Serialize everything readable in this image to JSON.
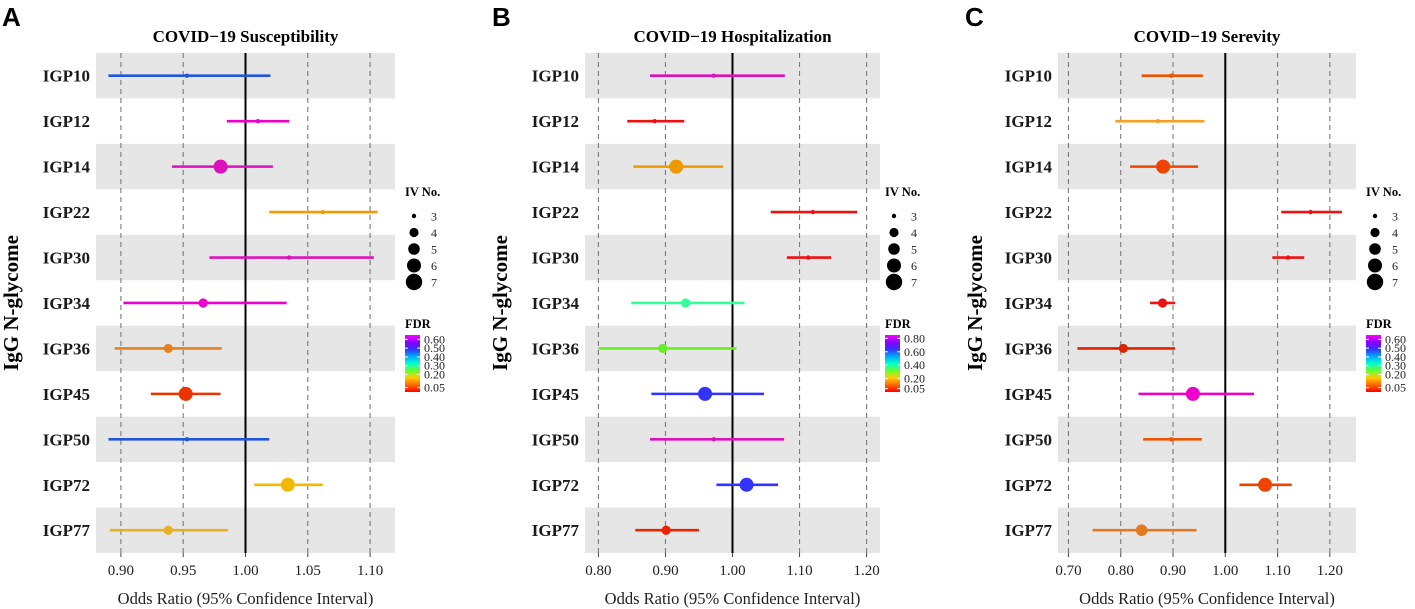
{
  "ylabel": "IgG N-glycome",
  "xlabel": "Odds Ratio (95% Confidence Interval)",
  "legend": {
    "size_title": "IV No.",
    "size_values": [
      3,
      4,
      5,
      6,
      7
    ],
    "color_title": "FDR",
    "colorscale": [
      "#ff0000",
      "#ff6600",
      "#ffcc00",
      "#66ff33",
      "#00ffcc",
      "#00aaff",
      "#3333ff",
      "#8800ff",
      "#ff00ff"
    ]
  },
  "chart_data": [
    {
      "panel": "A",
      "type": "forest",
      "title": "COVID−19 Susceptibility",
      "xlim": [
        0.88,
        1.12
      ],
      "xticks": [
        0.9,
        0.95,
        1.0,
        1.05,
        1.1
      ],
      "xtick_labels": [
        "0.90",
        "0.95",
        "1.00",
        "1.05",
        "1.10"
      ],
      "ref_line": 1.0,
      "fdr_ticks": [
        0.6,
        0.5,
        0.4,
        0.3,
        0.2,
        0.05
      ],
      "fdr_labels": [
        "0.60",
        "0.50",
        "0.40",
        "0.30",
        "0.20",
        "0.05"
      ],
      "fdr_range": [
        0.0,
        0.65
      ],
      "rows": [
        {
          "label": "IGP10",
          "or": 0.953,
          "lo": 0.89,
          "hi": 1.02,
          "iv": 3,
          "fdr": 0.45,
          "color": "#2255dd"
        },
        {
          "label": "IGP12",
          "or": 1.01,
          "lo": 0.985,
          "hi": 1.035,
          "iv": 3,
          "fdr": 0.62,
          "color": "#ee00cc"
        },
        {
          "label": "IGP14",
          "or": 0.98,
          "lo": 0.941,
          "hi": 1.022,
          "iv": 6,
          "fdr": 0.62,
          "color": "#dd11bb"
        },
        {
          "label": "IGP22",
          "or": 1.062,
          "lo": 1.019,
          "hi": 1.106,
          "iv": 3,
          "fdr": 0.12,
          "color": "#f59a00"
        },
        {
          "label": "IGP30",
          "or": 1.035,
          "lo": 0.971,
          "hi": 1.103,
          "iv": 3,
          "fdr": 0.62,
          "color": "#dd11bb"
        },
        {
          "label": "IGP34",
          "or": 0.966,
          "lo": 0.902,
          "hi": 1.033,
          "iv": 4,
          "fdr": 0.62,
          "color": "#ee00cc"
        },
        {
          "label": "IGP36",
          "or": 0.938,
          "lo": 0.895,
          "hi": 0.981,
          "iv": 4,
          "fdr": 0.1,
          "color": "#e6821e"
        },
        {
          "label": "IGP45",
          "or": 0.952,
          "lo": 0.924,
          "hi": 0.98,
          "iv": 6,
          "fdr": 0.03,
          "color": "#ee3300"
        },
        {
          "label": "IGP50",
          "or": 0.953,
          "lo": 0.89,
          "hi": 1.019,
          "iv": 3,
          "fdr": 0.45,
          "color": "#2255dd"
        },
        {
          "label": "IGP72",
          "or": 1.034,
          "lo": 1.007,
          "hi": 1.062,
          "iv": 6,
          "fdr": 0.15,
          "color": "#f5b800"
        },
        {
          "label": "IGP77",
          "or": 0.938,
          "lo": 0.891,
          "hi": 0.986,
          "iv": 4,
          "fdr": 0.15,
          "color": "#e6b020"
        }
      ]
    },
    {
      "panel": "B",
      "type": "forest",
      "title": "COVID−19 Hospitalization",
      "xlim": [
        0.78,
        1.22
      ],
      "xticks": [
        0.8,
        0.9,
        1.0,
        1.1,
        1.2
      ],
      "xtick_labels": [
        "0.80",
        "0.90",
        "1.00",
        "1.10",
        "1.20"
      ],
      "ref_line": 1.0,
      "fdr_ticks": [
        0.8,
        0.6,
        0.4,
        0.2,
        0.05
      ],
      "fdr_labels": [
        "0.80",
        "0.60",
        "0.40",
        "0.20",
        "0.05"
      ],
      "fdr_range": [
        0.0,
        0.85
      ],
      "rows": [
        {
          "label": "IGP10",
          "or": 0.972,
          "lo": 0.877,
          "hi": 1.078,
          "iv": 3,
          "fdr": 0.82,
          "color": "#dd11bb"
        },
        {
          "label": "IGP12",
          "or": 0.884,
          "lo": 0.843,
          "hi": 0.928,
          "iv": 3,
          "fdr": 0.03,
          "color": "#ee1111"
        },
        {
          "label": "IGP14",
          "or": 0.916,
          "lo": 0.852,
          "hi": 0.986,
          "iv": 6,
          "fdr": 0.15,
          "color": "#ee9900"
        },
        {
          "label": "IGP22",
          "or": 1.12,
          "lo": 1.057,
          "hi": 1.186,
          "iv": 3,
          "fdr": 0.02,
          "color": "#ee1111"
        },
        {
          "label": "IGP30",
          "or": 1.113,
          "lo": 1.081,
          "hi": 1.147,
          "iv": 3,
          "fdr": 0.02,
          "color": "#ee1111"
        },
        {
          "label": "IGP34",
          "or": 0.93,
          "lo": 0.849,
          "hi": 1.018,
          "iv": 4,
          "fdr": 0.4,
          "color": "#33ff99"
        },
        {
          "label": "IGP36",
          "or": 0.896,
          "lo": 0.8,
          "hi": 1.006,
          "iv": 4,
          "fdr": 0.3,
          "color": "#66ee22"
        },
        {
          "label": "IGP45",
          "or": 0.959,
          "lo": 0.879,
          "hi": 1.047,
          "iv": 6,
          "fdr": 0.65,
          "color": "#3333ff"
        },
        {
          "label": "IGP50",
          "or": 0.972,
          "lo": 0.877,
          "hi": 1.077,
          "iv": 3,
          "fdr": 0.82,
          "color": "#dd11bb"
        },
        {
          "label": "IGP72",
          "or": 1.021,
          "lo": 0.976,
          "hi": 1.068,
          "iv": 6,
          "fdr": 0.65,
          "color": "#3333ff"
        },
        {
          "label": "IGP77",
          "or": 0.901,
          "lo": 0.855,
          "hi": 0.95,
          "iv": 4,
          "fdr": 0.03,
          "color": "#ee2200"
        }
      ]
    },
    {
      "panel": "C",
      "type": "forest",
      "title": "COVID−19 Serevity",
      "xlim": [
        0.68,
        1.25
      ],
      "xticks": [
        0.7,
        0.8,
        0.9,
        1.0,
        1.1,
        1.2
      ],
      "xtick_labels": [
        "0.70",
        "0.80",
        "0.90",
        "1.00",
        "1.10",
        "1.20"
      ],
      "ref_line": 1.0,
      "fdr_ticks": [
        0.6,
        0.5,
        0.4,
        0.3,
        0.2,
        0.05
      ],
      "fdr_labels": [
        "0.60",
        "0.50",
        "0.40",
        "0.30",
        "0.20",
        "0.05"
      ],
      "fdr_range": [
        0.0,
        0.65
      ],
      "rows": [
        {
          "label": "IGP10",
          "or": 0.897,
          "lo": 0.84,
          "hi": 0.957,
          "iv": 3,
          "fdr": 0.06,
          "color": "#ee5500"
        },
        {
          "label": "IGP12",
          "or": 0.871,
          "lo": 0.79,
          "hi": 0.96,
          "iv": 3,
          "fdr": 0.15,
          "color": "#f5a020"
        },
        {
          "label": "IGP14",
          "or": 0.881,
          "lo": 0.818,
          "hi": 0.948,
          "iv": 6,
          "fdr": 0.04,
          "color": "#ee4400"
        },
        {
          "label": "IGP22",
          "or": 1.163,
          "lo": 1.107,
          "hi": 1.223,
          "iv": 3,
          "fdr": 0.02,
          "color": "#ee1111"
        },
        {
          "label": "IGP30",
          "or": 1.12,
          "lo": 1.09,
          "hi": 1.151,
          "iv": 3,
          "fdr": 0.02,
          "color": "#ee1111"
        },
        {
          "label": "IGP34",
          "or": 0.88,
          "lo": 0.856,
          "hi": 0.904,
          "iv": 4,
          "fdr": 0.02,
          "color": "#ee1111"
        },
        {
          "label": "IGP36",
          "or": 0.805,
          "lo": 0.717,
          "hi": 0.904,
          "iv": 4,
          "fdr": 0.03,
          "color": "#dd2200"
        },
        {
          "label": "IGP45",
          "or": 0.938,
          "lo": 0.834,
          "hi": 1.055,
          "iv": 6,
          "fdr": 0.62,
          "color": "#ee00cc"
        },
        {
          "label": "IGP50",
          "or": 0.897,
          "lo": 0.843,
          "hi": 0.955,
          "iv": 3,
          "fdr": 0.06,
          "color": "#ee5500"
        },
        {
          "label": "IGP72",
          "or": 1.076,
          "lo": 1.027,
          "hi": 1.127,
          "iv": 6,
          "fdr": 0.04,
          "color": "#ee4400"
        },
        {
          "label": "IGP77",
          "or": 0.84,
          "lo": 0.746,
          "hi": 0.945,
          "iv": 5,
          "fdr": 0.08,
          "color": "#e67820"
        }
      ]
    }
  ]
}
